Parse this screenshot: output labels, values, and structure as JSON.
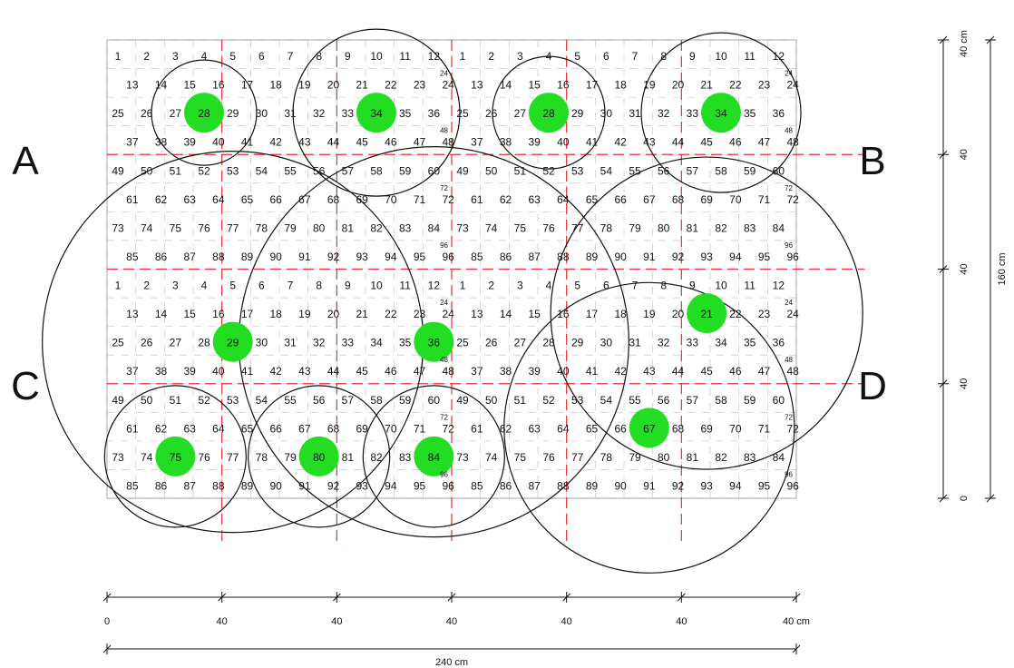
{
  "quadrants": [
    {
      "label": "A",
      "block_col": 0,
      "block_row": 0
    },
    {
      "label": "B",
      "block_col": 1,
      "block_row": 0
    },
    {
      "label": "C",
      "block_col": 0,
      "block_row": 1
    },
    {
      "label": "D",
      "block_col": 1,
      "block_row": 1
    }
  ],
  "grid": {
    "cols_per_block": 12,
    "rows_per_block": 8,
    "numbering": "1..96 row-wise, alternating offset rows",
    "row_end_labels": [
      "24",
      "48",
      "72",
      "96"
    ]
  },
  "sample_points": [
    {
      "block": "A",
      "number": 28
    },
    {
      "block": "A",
      "number": 34
    },
    {
      "block": "B",
      "number": 28
    },
    {
      "block": "B",
      "number": 34
    },
    {
      "block": "C",
      "number": 29
    },
    {
      "block": "C",
      "number": 36
    },
    {
      "block": "C",
      "number": 75
    },
    {
      "block": "C",
      "number": 80
    },
    {
      "block": "C",
      "number": 84
    },
    {
      "block": "D",
      "number": 21
    },
    {
      "block": "D",
      "number": 67
    }
  ],
  "bottom_scale": {
    "ticks": [
      "0",
      "40",
      "40",
      "40",
      "40",
      "40",
      "40 cm"
    ],
    "total_label": "240 cm"
  },
  "right_scale": {
    "ticks": [
      "0",
      "40",
      "40",
      "40",
      "40 cm"
    ],
    "total_label": "160 cm"
  },
  "colors": {
    "sample_fill": "#22dd22",
    "division_line": "#e53030",
    "grid_line": "#bdbdbd",
    "circle_stroke": "#111111"
  }
}
